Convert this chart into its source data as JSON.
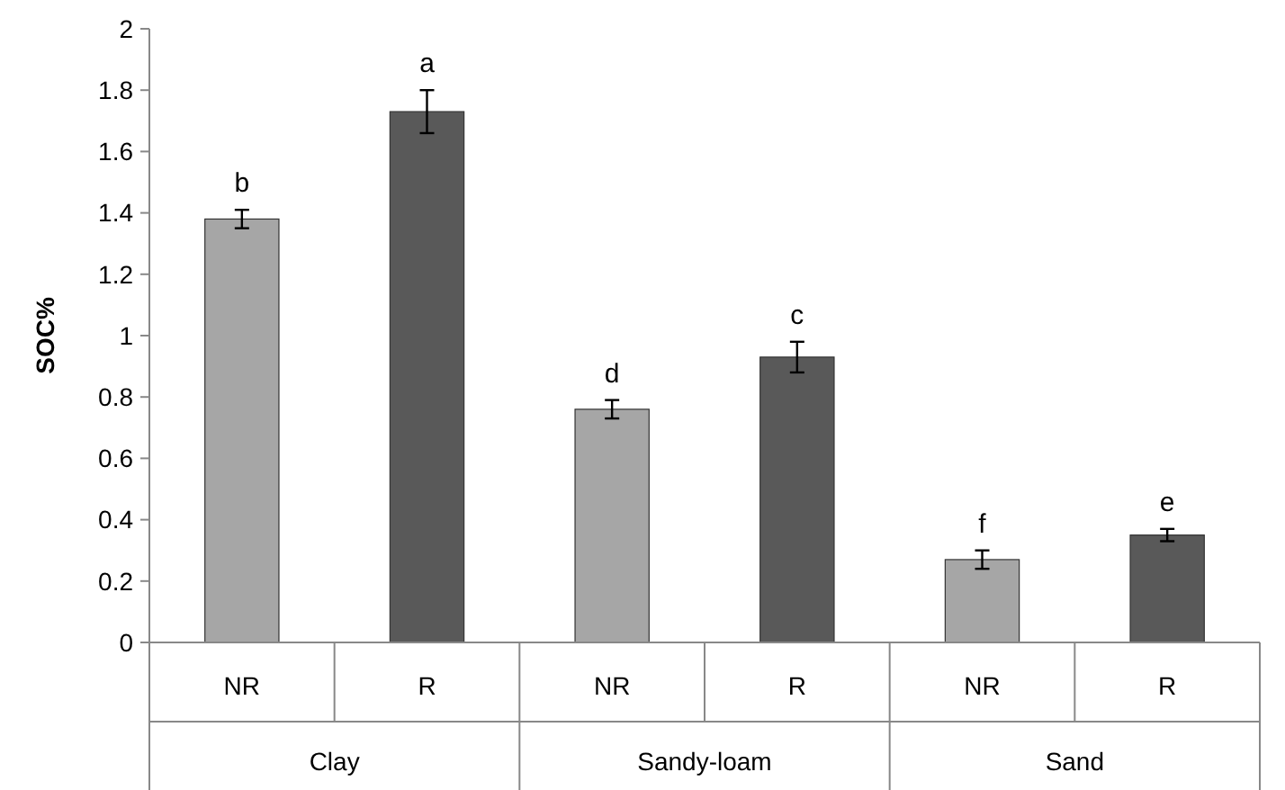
{
  "chart_data": {
    "type": "bar",
    "ylabel": "SOC%",
    "categories": [
      "NR",
      "R",
      "NR",
      "R",
      "NR",
      "R"
    ],
    "values": [
      1.38,
      1.73,
      0.76,
      0.93,
      0.27,
      0.35
    ],
    "colors": [
      "#a6a6a6",
      "#595959",
      "#a6a6a6",
      "#595959",
      "#a6a6a6",
      "#595959"
    ],
    "errors": [
      0.03,
      0.07,
      0.03,
      0.05,
      0.03,
      0.02
    ],
    "ylim": [
      0,
      2
    ],
    "yticks": [
      0,
      0.2,
      0.4,
      0.6,
      0.8,
      1,
      1.2,
      1.4,
      1.6,
      1.8,
      2
    ],
    "grid": false,
    "annotations": [
      "b",
      "a",
      "d",
      "c",
      "f",
      "e",
      "Clay",
      "Sandy-loam",
      "Sand"
    ]
  }
}
